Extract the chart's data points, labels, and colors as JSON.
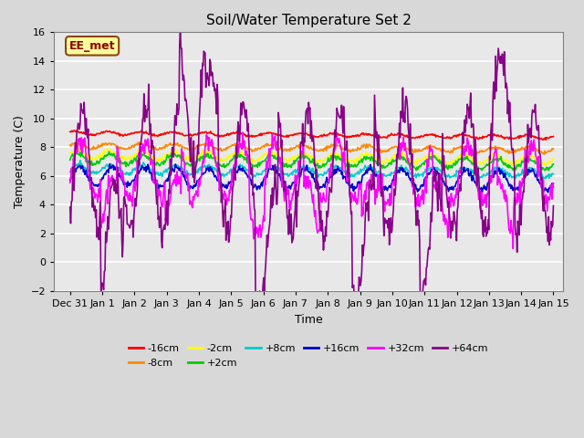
{
  "title": "Soil/Water Temperature Set 2",
  "xlabel": "Time",
  "ylabel": "Temperature (C)",
  "ylim": [
    -2,
    16
  ],
  "yticks": [
    -2,
    0,
    2,
    4,
    6,
    8,
    10,
    12,
    14,
    16
  ],
  "annotation_text": "EE_met",
  "annotation_color": "#8B0000",
  "annotation_bg": "#FFFF99",
  "annotation_edge": "#8B4513",
  "fig_bg": "#D8D8D8",
  "ax_bg": "#E8E8E8",
  "x_tick_positions": [
    0,
    1,
    2,
    3,
    4,
    5,
    6,
    7,
    8,
    9,
    10,
    11,
    12,
    13,
    14,
    15
  ],
  "x_tick_labels": [
    "Dec 31",
    "Jan 1",
    "Jan 2",
    "Jan 3",
    "Jan 4",
    "Jan 5",
    "Jan 6",
    "Jan 7",
    "Jan 8",
    "Jan 9",
    "Jan 10",
    "Jan 11",
    "Jan 12",
    "Jan 13",
    "Jan 14",
    "Jan 15"
  ],
  "legend": [
    [
      "-16cm",
      "#FF0000"
    ],
    [
      "-8cm",
      "#FF8800"
    ],
    [
      "-2cm",
      "#FFFF00"
    ],
    [
      "+2cm",
      "#00CC00"
    ],
    [
      "+8cm",
      "#00CCCC"
    ],
    [
      "+16cm",
      "#0000CC"
    ],
    [
      "+32cm",
      "#FF00FF"
    ],
    [
      "+64cm",
      "#880088"
    ]
  ]
}
